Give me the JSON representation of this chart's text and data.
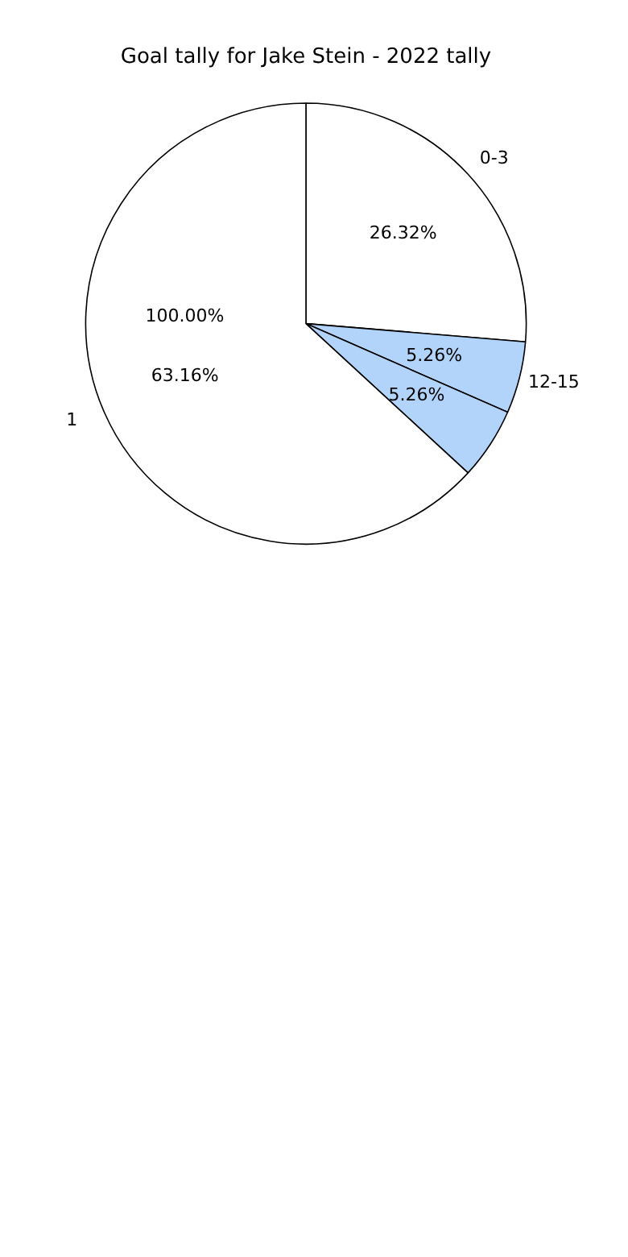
{
  "chart_data": {
    "type": "pie",
    "title": "Goal tally for Jake Stein - 2022 tally",
    "categories": [
      "0-3",
      "12-15",
      null,
      "1"
    ],
    "values": [
      26.32,
      5.26,
      5.26,
      63.16
    ],
    "colors": [
      "#ffffff",
      "#b3d4fa",
      "#b3d4fa",
      "#ffffff"
    ],
    "value_labels": [
      "26.32%",
      "5.26%",
      "5.26%",
      "63.16%"
    ],
    "annotations": [
      "100.00%"
    ],
    "legend": false
  }
}
